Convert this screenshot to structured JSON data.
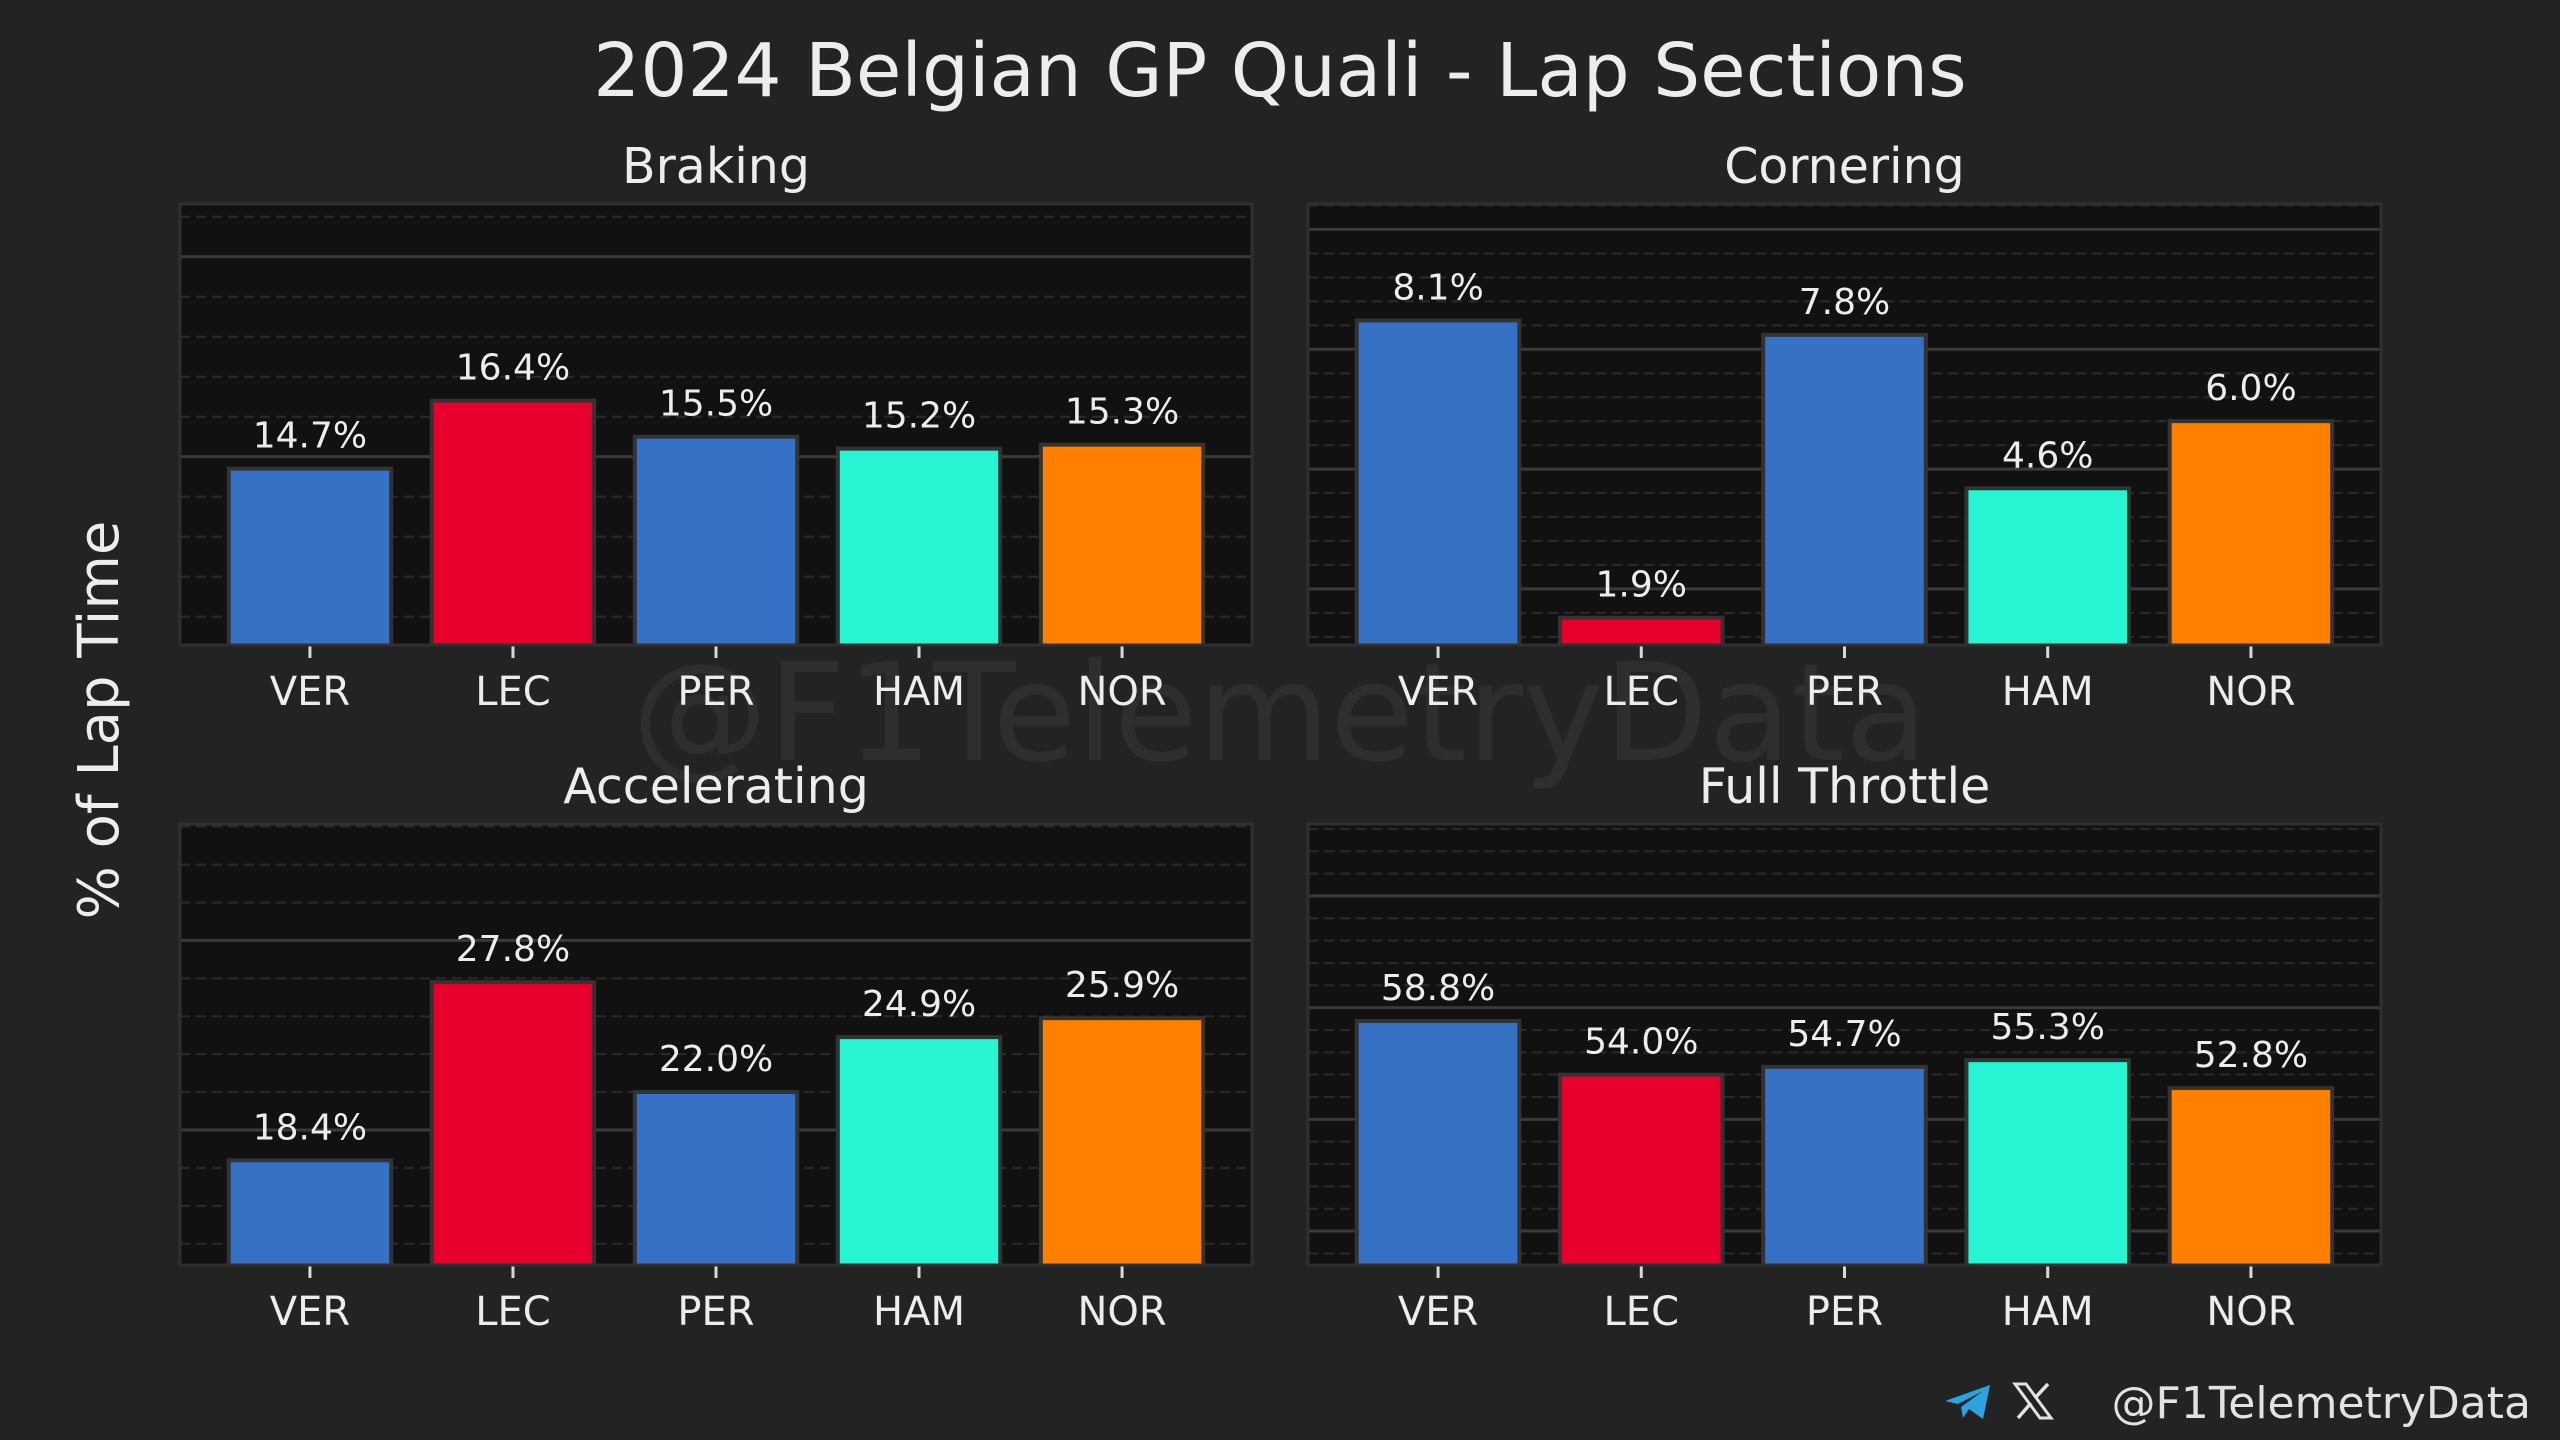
{
  "figure": {
    "title": "2024 Belgian GP Quali - Lap Sections",
    "ylabel": "% of Lap Time",
    "background": "#232323",
    "plot_background": "#111111"
  },
  "watermark": "@F1TelemetryData",
  "footer": {
    "icons": [
      "telegram-icon",
      "x-icon"
    ],
    "handle": "@F1TelemetryData",
    "telegram_color": "#2AA3DF"
  },
  "chart_data": [
    {
      "type": "bar",
      "title": "Braking",
      "categories": [
        "VER",
        "LEC",
        "PER",
        "HAM",
        "NOR"
      ],
      "values": [
        14.7,
        16.4,
        15.5,
        15.2,
        15.3
      ],
      "value_labels": [
        "14.7%",
        "16.4%",
        "15.5%",
        "15.2%",
        "15.3%"
      ],
      "colors": [
        "#3671C6",
        "#E8002D",
        "#3671C6",
        "#27F4D2",
        "#FF8000"
      ],
      "ylim": [
        10.29,
        21.32
      ],
      "grid": true,
      "y_major_step": 5,
      "y_minor_step": 1
    },
    {
      "type": "bar",
      "title": "Cornering",
      "categories": [
        "VER",
        "LEC",
        "PER",
        "HAM",
        "NOR"
      ],
      "values": [
        8.1,
        1.9,
        7.8,
        4.6,
        6.0
      ],
      "value_labels": [
        "8.1%",
        "1.9%",
        "7.8%",
        "4.6%",
        "6.0%"
      ],
      "colors": [
        "#3671C6",
        "#E8002D",
        "#3671C6",
        "#27F4D2",
        "#FF8000"
      ],
      "ylim": [
        1.33,
        10.53
      ],
      "grid": true,
      "y_major_step": 2.5,
      "y_minor_step": 0.5
    },
    {
      "type": "bar",
      "title": "Accelerating",
      "categories": [
        "VER",
        "LEC",
        "PER",
        "HAM",
        "NOR"
      ],
      "values": [
        18.4,
        27.8,
        22.0,
        24.9,
        25.9
      ],
      "value_labels": [
        "18.4%",
        "27.8%",
        "22.0%",
        "24.9%",
        "25.9%"
      ],
      "colors": [
        "#3671C6",
        "#E8002D",
        "#3671C6",
        "#27F4D2",
        "#FF8000"
      ],
      "ylim": [
        12.88,
        36.14
      ],
      "grid": true,
      "y_major_step": 10,
      "y_minor_step": 2
    },
    {
      "type": "bar",
      "title": "Full Throttle",
      "categories": [
        "VER",
        "LEC",
        "PER",
        "HAM",
        "NOR"
      ],
      "values": [
        58.8,
        54.0,
        54.7,
        55.3,
        52.8
      ],
      "value_labels": [
        "58.8%",
        "54.0%",
        "54.7%",
        "55.3%",
        "52.8%"
      ],
      "colors": [
        "#3671C6",
        "#E8002D",
        "#3671C6",
        "#27F4D2",
        "#FF8000"
      ],
      "ylim": [
        36.96,
        76.44
      ],
      "grid": true,
      "y_major_step": 10,
      "y_minor_step": 2
    }
  ]
}
